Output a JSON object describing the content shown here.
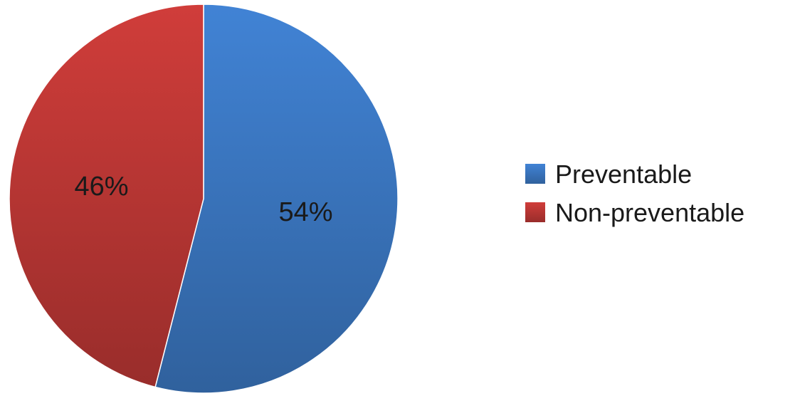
{
  "chart_data": {
    "type": "pie",
    "title": "",
    "categories": [
      "Preventable",
      "Non-preventable"
    ],
    "values": [
      54,
      46
    ],
    "data_labels": [
      "54%",
      "46%"
    ],
    "colors": [
      "#3d7cc9",
      "#c43a37"
    ],
    "start_angle_deg": 0,
    "direction": "clockwise",
    "legend": {
      "position": "right",
      "entries": [
        "Preventable",
        "Non-preventable"
      ]
    }
  }
}
